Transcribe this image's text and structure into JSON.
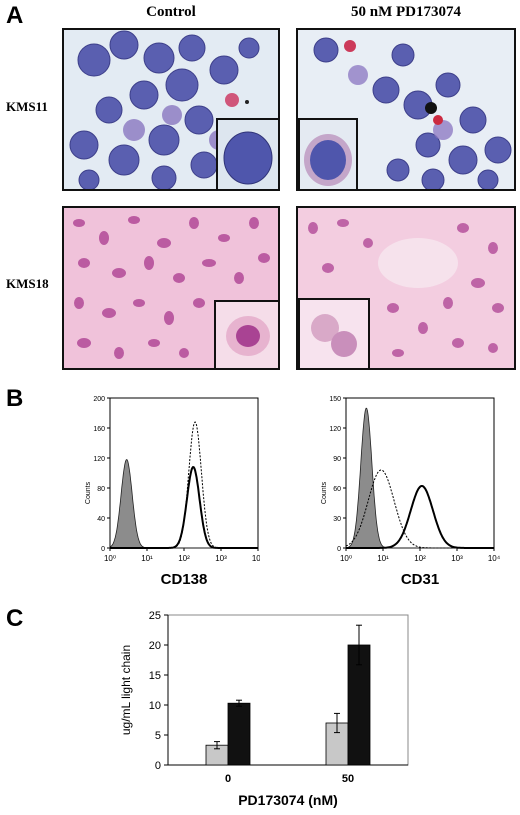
{
  "panel_a": {
    "letter": "A",
    "columns": [
      "Control",
      "50 nM PD173074"
    ],
    "rows": [
      "KMS11",
      "KMS18"
    ]
  },
  "panel_b": {
    "letter": "B",
    "histograms": [
      {
        "marker": "CD138",
        "ylabel": "Counts",
        "y_ticks": [
          "0",
          "40",
          "80",
          "120",
          "160",
          "200"
        ],
        "y_max": 200,
        "x_ticks": [
          "10⁰",
          "10¹",
          "10²",
          "10³",
          "10⁴"
        ],
        "peaks": {
          "isotype_filled": {
            "center_log": 0.45,
            "height": 118
          },
          "control_solid": {
            "center_log": 2.25,
            "height": 108
          },
          "treated_dashed": {
            "center_log": 2.3,
            "height": 168
          }
        }
      },
      {
        "marker": "CD31",
        "ylabel": "Counts",
        "y_ticks": [
          "0",
          "30",
          "60",
          "90",
          "120",
          "150"
        ],
        "y_max": 150,
        "x_ticks": [
          "10⁰",
          "10¹",
          "10²",
          "10³",
          "10⁴"
        ],
        "peaks": {
          "isotype_filled": {
            "center_log": 0.55,
            "height": 140
          },
          "control_solid": {
            "center_log": 2.05,
            "height": 62
          },
          "treated_dashed": {
            "center_log": 0.95,
            "height": 78
          }
        }
      }
    ]
  },
  "panel_c": {
    "letter": "C",
    "colors": {
      "light_bar": "#c8c8c8",
      "dark_bar": "#111111"
    }
  },
  "chart_data": {
    "type": "bar",
    "categories": [
      "0",
      "50"
    ],
    "series": [
      {
        "values": [
          3.3,
          7.0
        ],
        "errors": [
          0.6,
          1.6
        ],
        "color": "#c8c8c8"
      },
      {
        "values": [
          10.3,
          20.0
        ],
        "errors": [
          0.5,
          3.3
        ],
        "color": "#111111"
      }
    ],
    "xlabel": "PD173074 (nM)",
    "ylabel": "ug/mL light chain",
    "ylim": [
      0,
      25
    ],
    "y_ticks": [
      0,
      5,
      10,
      15,
      20,
      25
    ],
    "grid": false
  }
}
